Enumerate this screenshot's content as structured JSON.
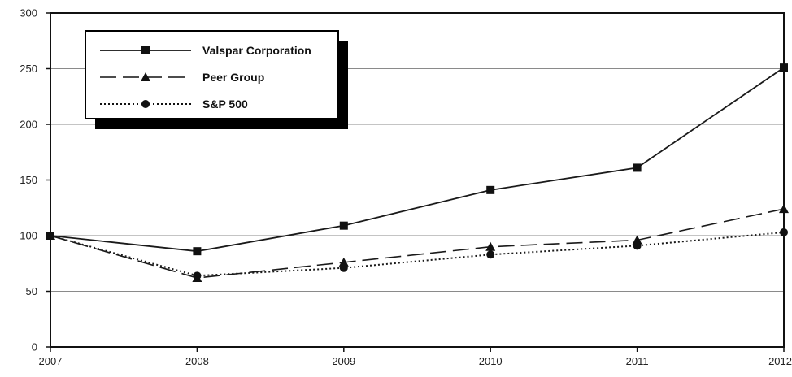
{
  "chart_data": {
    "type": "line",
    "title": "",
    "xlabel": "",
    "ylabel": "",
    "x": [
      "2007",
      "2008",
      "2009",
      "2010",
      "2011",
      "2012"
    ],
    "ylim": [
      0,
      300
    ],
    "yticks": [
      "0",
      "50",
      "100",
      "150",
      "200",
      "250",
      "300"
    ],
    "grid": "horizontal",
    "legend_position": "top-left",
    "series": [
      {
        "name": "Valspar Corporation",
        "values": [
          100,
          86,
          109,
          141,
          161,
          251
        ],
        "marker": "square",
        "line_style": "solid",
        "color": "#1a1a1a"
      },
      {
        "name": "Peer Group",
        "values": [
          100,
          62,
          76,
          90,
          96,
          124
        ],
        "marker": "triangle",
        "line_style": "dashed",
        "color": "#1a1a1a"
      },
      {
        "name": "S&P 500",
        "values": [
          100,
          64,
          71,
          83,
          91,
          103
        ],
        "marker": "circle",
        "line_style": "dotted",
        "color": "#1a1a1a"
      }
    ]
  }
}
